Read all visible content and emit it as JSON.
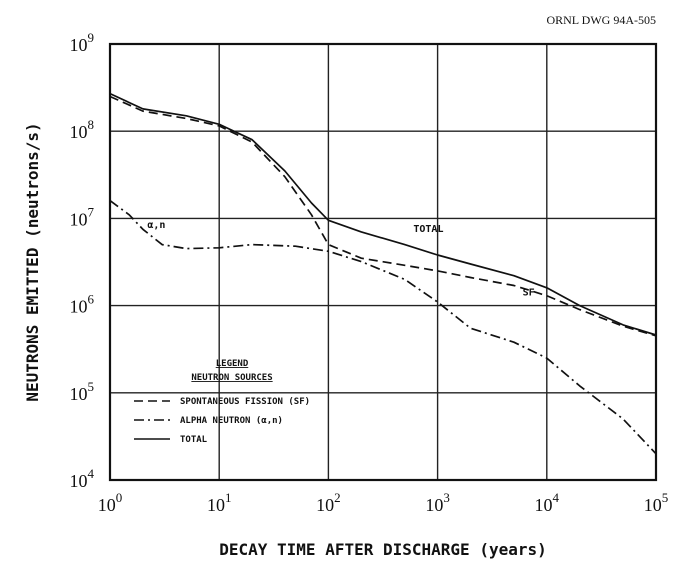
{
  "header": {
    "drawing_id": "ORNL DWG 94A-505"
  },
  "chart_data": {
    "type": "line",
    "xscale": "log",
    "yscale": "log",
    "xlim": [
      1,
      100000
    ],
    "ylim": [
      10000,
      1000000000
    ],
    "xlabel": "DECAY TIME AFTER DISCHARGE (years)",
    "ylabel": "NEUTRONS EMITTED (neutrons/s)",
    "grid": true,
    "x_ticks": [
      {
        "value": 1,
        "base": "10",
        "exp": "0"
      },
      {
        "value": 10,
        "base": "10",
        "exp": "1"
      },
      {
        "value": 100,
        "base": "10",
        "exp": "2"
      },
      {
        "value": 1000,
        "base": "10",
        "exp": "3"
      },
      {
        "value": 10000,
        "base": "10",
        "exp": "4"
      },
      {
        "value": 100000,
        "base": "10",
        "exp": "5"
      }
    ],
    "y_ticks": [
      {
        "value": 10000,
        "base": "10",
        "exp": "4"
      },
      {
        "value": 100000,
        "base": "10",
        "exp": "5"
      },
      {
        "value": 1000000,
        "base": "10",
        "exp": "6"
      },
      {
        "value": 10000000,
        "base": "10",
        "exp": "7"
      },
      {
        "value": 100000000,
        "base": "10",
        "exp": "8"
      },
      {
        "value": 1000000000,
        "base": "10",
        "exp": "9"
      }
    ],
    "legend": {
      "title_line1": "LEGEND",
      "title_line2": "NEUTRON SOURCES",
      "entries": [
        {
          "series": "sf",
          "label": "SPONTANEOUS FISSION (SF)"
        },
        {
          "series": "an",
          "label": "ALPHA NEUTRON (α,n)"
        },
        {
          "series": "total",
          "label": "TOTAL"
        }
      ]
    },
    "annotations": [
      {
        "text": "α,n",
        "x": 2.2,
        "y": 7800000
      },
      {
        "text": "TOTAL",
        "x": 600,
        "y": 7000000
      },
      {
        "text": "SF",
        "x": 6000,
        "y": 1300000
      }
    ],
    "series": [
      {
        "id": "total",
        "style": "solid",
        "x": [
          1,
          2,
          5,
          10,
          20,
          40,
          70,
          100,
          200,
          500,
          1000,
          2000,
          5000,
          10000,
          20000,
          50000,
          100000
        ],
        "y": [
          270000000,
          180000000,
          150000000,
          120000000,
          80000000,
          35000000,
          15000000,
          9500000,
          7000000,
          5000000,
          3800000,
          3000000,
          2200000,
          1600000,
          1000000,
          600000,
          460000
        ]
      },
      {
        "id": "sf",
        "style": "dashed",
        "x": [
          1,
          2,
          5,
          10,
          20,
          40,
          70,
          100,
          200,
          500,
          1000,
          2000,
          5000,
          10000,
          20000,
          50000,
          100000
        ],
        "y": [
          250000000,
          170000000,
          140000000,
          115000000,
          75000000,
          30000000,
          11000000,
          5000000,
          3500000,
          2900000,
          2500000,
          2100000,
          1700000,
          1300000,
          900000,
          580000,
          450000
        ]
      },
      {
        "id": "an",
        "style": "dashdot",
        "x": [
          1,
          1.5,
          2,
          3,
          5,
          10,
          20,
          50,
          100,
          200,
          500,
          1000,
          2000,
          5000,
          10000,
          20000,
          50000,
          100000
        ],
        "y": [
          16000000,
          11000000,
          7500000,
          5000000,
          4500000,
          4600000,
          5000000,
          4800000,
          4200000,
          3200000,
          2000000,
          1100000,
          550000,
          380000,
          250000,
          120000,
          50000,
          20000
        ]
      }
    ]
  }
}
